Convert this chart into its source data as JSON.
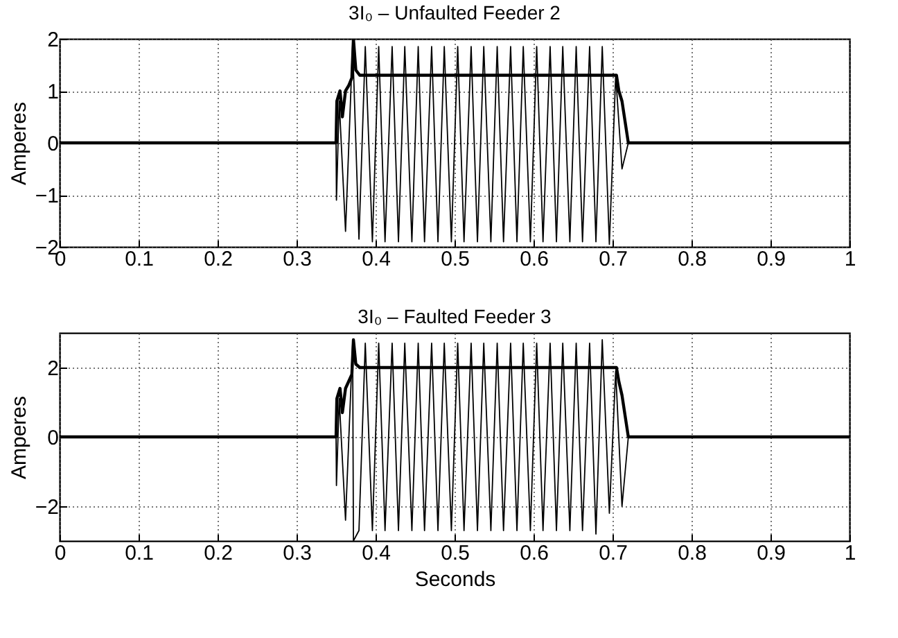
{
  "chart_data": [
    {
      "type": "line",
      "title": "3I₀ – Unfaulted Feeder 2",
      "ylabel": "Amperes",
      "xlim": [
        0,
        1
      ],
      "xticks": [
        0,
        0.1,
        0.2,
        0.3,
        0.4,
        0.5,
        0.6,
        0.7,
        0.8,
        0.9,
        1
      ],
      "ylim": [
        -2,
        2
      ],
      "yticks": [
        -2,
        -1,
        0,
        1,
        2
      ],
      "grid": true,
      "legend": false,
      "series": [
        {
          "color": "#000000",
          "x": [
            0,
            0.35,
            0.3505,
            0.354,
            0.362,
            0.371,
            0.379,
            0.387,
            0.396,
            0.404,
            0.412,
            0.421,
            0.429,
            0.437,
            0.446,
            0.454,
            0.462,
            0.471,
            0.479,
            0.487,
            0.496,
            0.504,
            0.512,
            0.521,
            0.529,
            0.537,
            0.546,
            0.554,
            0.562,
            0.571,
            0.579,
            0.587,
            0.596,
            0.604,
            0.612,
            0.621,
            0.629,
            0.637,
            0.646,
            0.654,
            0.662,
            0.671,
            0.679,
            0.687,
            0.696,
            0.704,
            0.712,
            0.72,
            1
          ],
          "values": [
            0,
            0,
            -1.1,
            0.8,
            -1.7,
            1.9,
            -1.85,
            1.85,
            -1.9,
            1.85,
            -1.9,
            1.85,
            -1.9,
            1.85,
            -1.9,
            1.85,
            -1.9,
            1.85,
            -1.9,
            1.85,
            -1.9,
            1.85,
            -1.9,
            1.85,
            -1.9,
            1.85,
            -1.9,
            1.85,
            -1.9,
            1.85,
            -1.9,
            1.85,
            -1.9,
            1.85,
            -1.9,
            1.85,
            -1.9,
            1.85,
            -1.9,
            1.85,
            -1.9,
            1.85,
            -1.9,
            1.85,
            -1.95,
            1.3,
            -0.5,
            0,
            0
          ]
        },
        {
          "color": "#000000",
          "x": [
            0,
            0.35,
            0.351,
            0.355,
            0.358,
            0.362,
            0.366,
            0.37,
            0.372,
            0.375,
            0.38,
            0.705,
            0.708,
            0.712,
            0.716,
            0.72,
            1
          ],
          "values": [
            0,
            0,
            0.8,
            1.0,
            0.5,
            1.0,
            1.1,
            1.25,
            2.0,
            1.4,
            1.3,
            1.3,
            1.0,
            0.8,
            0.4,
            0,
            0
          ]
        }
      ]
    },
    {
      "type": "line",
      "title": "3I₀ – Faulted Feeder 3",
      "xlabel": "Seconds",
      "ylabel": "Amperes",
      "xlim": [
        0,
        1
      ],
      "xticks": [
        0,
        0.1,
        0.2,
        0.3,
        0.4,
        0.5,
        0.6,
        0.7,
        0.8,
        0.9,
        1
      ],
      "ylim": [
        -3,
        3
      ],
      "yticks": [
        -2,
        0,
        2
      ],
      "grid": true,
      "legend": false,
      "series": [
        {
          "color": "#000000",
          "x": [
            0,
            0.35,
            0.3505,
            0.354,
            0.362,
            0.371,
            0.372,
            0.379,
            0.387,
            0.396,
            0.404,
            0.412,
            0.421,
            0.429,
            0.437,
            0.446,
            0.454,
            0.462,
            0.471,
            0.479,
            0.487,
            0.496,
            0.504,
            0.512,
            0.521,
            0.529,
            0.537,
            0.546,
            0.554,
            0.562,
            0.571,
            0.579,
            0.587,
            0.596,
            0.604,
            0.612,
            0.621,
            0.629,
            0.637,
            0.646,
            0.654,
            0.662,
            0.671,
            0.679,
            0.687,
            0.696,
            0.704,
            0.712,
            0.72,
            1
          ],
          "values": [
            0,
            0,
            -1.4,
            1.1,
            -2.4,
            2.7,
            -3,
            -2.7,
            2.7,
            -2.7,
            2.7,
            -2.7,
            2.7,
            -2.7,
            2.7,
            -2.7,
            2.7,
            -2.7,
            2.7,
            -2.7,
            2.7,
            -2.7,
            2.7,
            -2.7,
            2.7,
            -2.7,
            2.7,
            -2.7,
            2.7,
            -2.7,
            2.7,
            -2.7,
            2.7,
            -2.7,
            2.7,
            -2.7,
            2.7,
            -2.7,
            2.7,
            -2.7,
            2.7,
            -2.7,
            2.7,
            -2.8,
            2.8,
            -2.2,
            1.9,
            -2.0,
            0,
            0
          ]
        },
        {
          "color": "#000000",
          "x": [
            0,
            0.35,
            0.351,
            0.355,
            0.358,
            0.362,
            0.366,
            0.37,
            0.372,
            0.375,
            0.38,
            0.705,
            0.708,
            0.712,
            0.716,
            0.72,
            1
          ],
          "values": [
            0,
            0,
            1.1,
            1.4,
            0.7,
            1.4,
            1.6,
            1.8,
            2.8,
            2.1,
            2.0,
            2.0,
            1.6,
            1.2,
            0.6,
            0,
            0
          ]
        }
      ]
    }
  ]
}
